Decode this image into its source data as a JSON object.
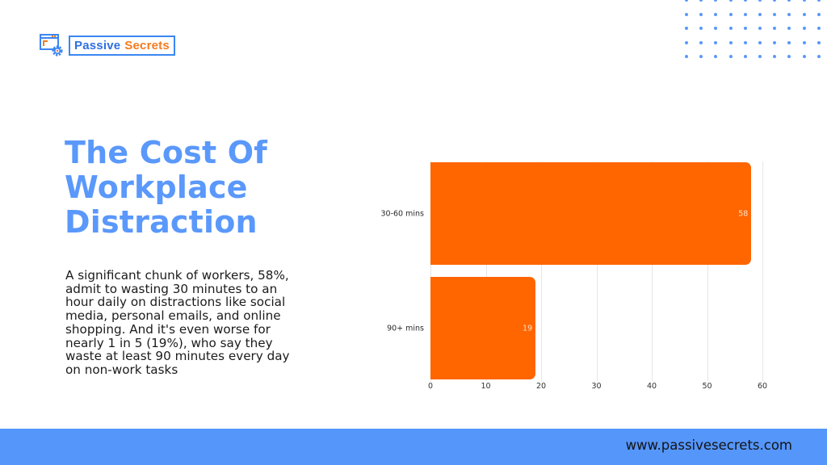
{
  "logo": {
    "word1": "Passive",
    "word2": "Secrets",
    "icon": "browser-gear-icon"
  },
  "title": {
    "lines": [
      "The Cost Of",
      "Workplace",
      "Distraction"
    ]
  },
  "description": {
    "lines": [
      "A significant chunk of workers, 58%,",
      "admit to wasting 30 minutes to an",
      "hour daily on distractions like social",
      "media, personal emails, and online",
      "shopping. And it's even worse for",
      "nearly 1 in 5 (19%), who say they",
      "waste at least 90 minutes every day",
      "on non-work tasks"
    ]
  },
  "footer": {
    "url": "www.passivesecrets.com"
  },
  "colors": {
    "brand_blue": "#5a98fb",
    "footer_blue": "#5596fb",
    "bar_orange": "#ff6600",
    "logo_orange": "#f47b20"
  },
  "chart_data": {
    "type": "bar",
    "orientation": "horizontal",
    "categories": [
      "30-60 mins",
      "90+ mins"
    ],
    "values": [
      58,
      19
    ],
    "data_labels": [
      "58",
      "19"
    ],
    "title": "",
    "xlabel": "",
    "ylabel": "",
    "xlim": [
      0,
      60
    ],
    "xticks": [
      "0",
      "10",
      "20",
      "30",
      "40",
      "50",
      "60"
    ],
    "grid": true,
    "legend": null
  }
}
